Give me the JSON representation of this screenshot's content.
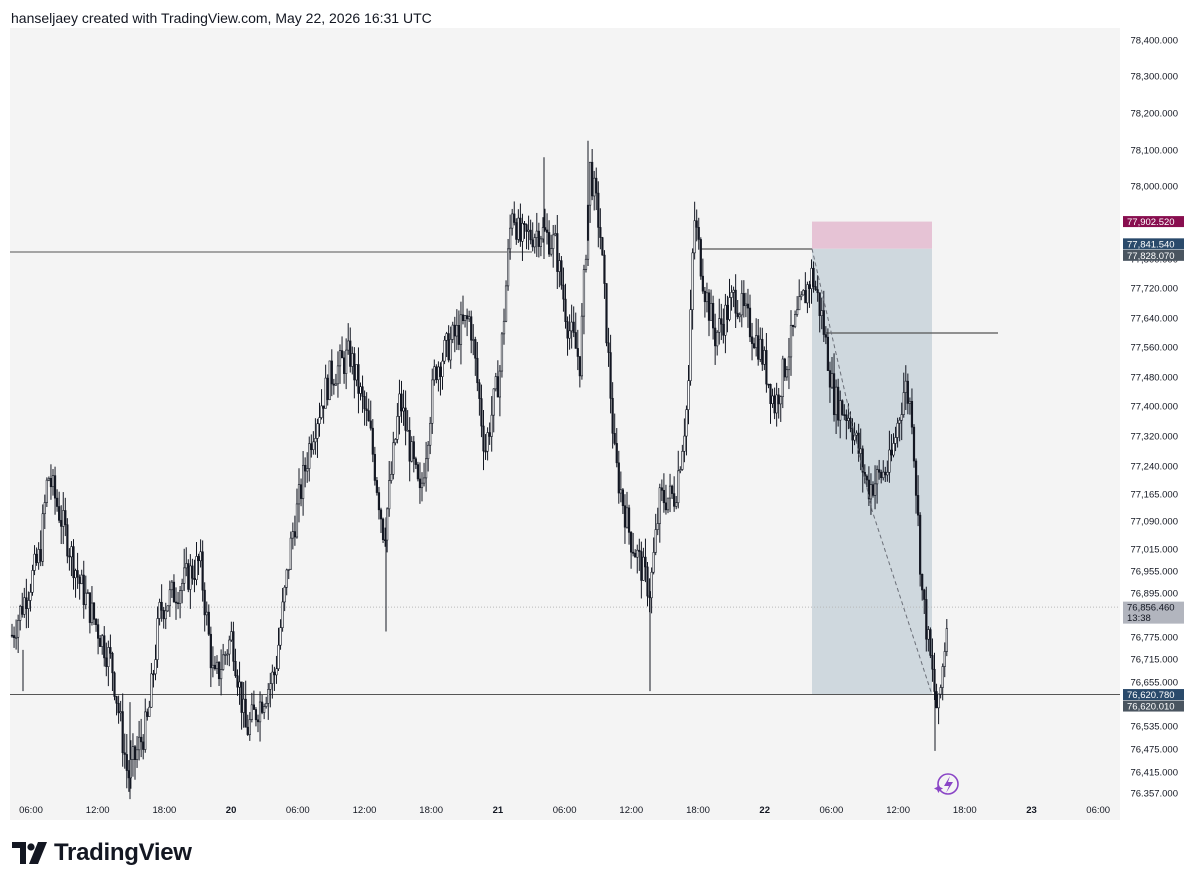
{
  "header": {
    "caption": "hanseljaey created with TradingView.com, May 22, 2026 16:31 UTC"
  },
  "branding": {
    "logo_icon": "tradingview-logo-icon",
    "name": "TradingView"
  },
  "chart_data": {
    "type": "candlestick",
    "title": "",
    "ylim": [
      76357,
      78420
    ],
    "grid": false,
    "background": "#f4f4f4",
    "y_ticks": [
      {
        "value": 78400,
        "label": "78,400.000"
      },
      {
        "value": 78300,
        "label": "78,300.000"
      },
      {
        "value": 78200,
        "label": "78,200.000"
      },
      {
        "value": 78100,
        "label": "78,100.000"
      },
      {
        "value": 78000,
        "label": "78,000.000"
      },
      {
        "value": 77800,
        "label": "77,800.000"
      },
      {
        "value": 77720,
        "label": "77,720.000"
      },
      {
        "value": 77640,
        "label": "77,640.000"
      },
      {
        "value": 77560,
        "label": "77,560.000"
      },
      {
        "value": 77480,
        "label": "77,480.000"
      },
      {
        "value": 77400,
        "label": "77,400.000"
      },
      {
        "value": 77320,
        "label": "77,320.000"
      },
      {
        "value": 77240,
        "label": "77,240.000"
      },
      {
        "value": 77165,
        "label": "77,165.000"
      },
      {
        "value": 77090,
        "label": "77,090.000"
      },
      {
        "value": 77015,
        "label": "77,015.000"
      },
      {
        "value": 76955,
        "label": "76,955.000"
      },
      {
        "value": 76895,
        "label": "76,895.000"
      },
      {
        "value": 76775,
        "label": "76,775.000"
      },
      {
        "value": 76715,
        "label": "76,715.000"
      },
      {
        "value": 76655,
        "label": "76,655.000"
      },
      {
        "value": 76535,
        "label": "76,535.000"
      },
      {
        "value": 76475,
        "label": "76,475.000"
      },
      {
        "value": 76415,
        "label": "76,415.000"
      },
      {
        "value": 76357,
        "label": "76.357.000"
      }
    ],
    "x_ticks": [
      {
        "label": "06:00",
        "bold": false
      },
      {
        "label": "12:00",
        "bold": false
      },
      {
        "label": "18:00",
        "bold": false
      },
      {
        "label": "20",
        "bold": true
      },
      {
        "label": "06:00",
        "bold": false
      },
      {
        "label": "12:00",
        "bold": false
      },
      {
        "label": "18:00",
        "bold": false
      },
      {
        "label": "21",
        "bold": true
      },
      {
        "label": "06:00",
        "bold": false
      },
      {
        "label": "12:00",
        "bold": false
      },
      {
        "label": "18:00",
        "bold": false
      },
      {
        "label": "22",
        "bold": true
      },
      {
        "label": "06:00",
        "bold": false
      },
      {
        "label": "12:00",
        "bold": false
      },
      {
        "label": "18:00",
        "bold": false
      },
      {
        "label": "23",
        "bold": true
      },
      {
        "label": "06:00",
        "bold": false
      }
    ],
    "price_labels": [
      {
        "value": 77902.52,
        "text": "77,902.520",
        "color": "#880e4f"
      },
      {
        "value": 77841.54,
        "text": "77,841.540",
        "color": "#2a4a6b"
      },
      {
        "value": 77828.07,
        "text": "77,828.070",
        "color": "#4a5560"
      },
      {
        "value": 76856.46,
        "text": "76,856.460",
        "countdown": "13:38",
        "color": "#b2b5be"
      },
      {
        "value": 76620.78,
        "text": "76,620.780",
        "color": "#2a4a6b"
      },
      {
        "value": 76620.01,
        "text": "76,620.010",
        "color": "#4a5560"
      }
    ],
    "last_price": 76856.46,
    "horizontal_lines": [
      {
        "value": 77829,
        "extent": "left-to-21"
      },
      {
        "value": 76620.78,
        "extent": "full"
      },
      {
        "value": 77835,
        "extent": "22-segment"
      },
      {
        "value": 77609,
        "extent": "22-segment-right"
      }
    ],
    "short_position": {
      "entry": 77828.07,
      "stop": 77902.52,
      "target": 76620.01,
      "stop_color": "#e6c3d5",
      "target_color": "#cfd8de"
    },
    "colors": {
      "up_candle": "#ffffff",
      "down_candle": "#131722",
      "axis_text": "#131722",
      "flash_icon": "#8a45c6"
    },
    "flash_icon": "lightning-circle-icon"
  }
}
